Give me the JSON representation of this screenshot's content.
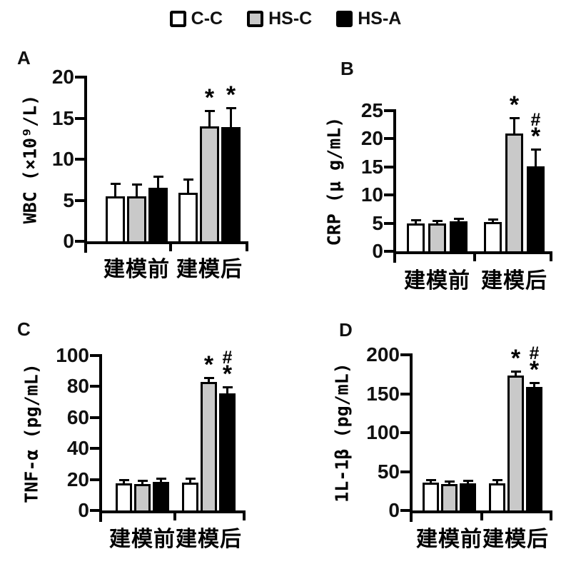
{
  "figure": {
    "background": "#ffffff",
    "panel_labels": [
      "A",
      "B",
      "C",
      "D"
    ]
  },
  "legend": {
    "position": "top-center",
    "items": [
      {
        "label": "C-C",
        "fill": "#ffffff",
        "border": "#000000"
      },
      {
        "label": "HS-C",
        "fill": "#c9c9c9",
        "border": "#000000"
      },
      {
        "label": "HS-A",
        "fill": "#000000",
        "border": "#000000"
      }
    ]
  },
  "chart_data": [
    {
      "panel": "A",
      "type": "bar",
      "ylabel": "WBC (×10⁹/L)",
      "xlabel": "",
      "ylim": [
        0,
        20
      ],
      "yticks": [
        0,
        5,
        10,
        15,
        20
      ],
      "grid": false,
      "legend_position": "top",
      "categories": [
        "建模前",
        "建模后"
      ],
      "series": [
        {
          "name": "C-C",
          "values": [
            5.5,
            5.9
          ],
          "errors": [
            1.4,
            1.5
          ],
          "annotations": [
            "",
            ""
          ]
        },
        {
          "name": "HS-C",
          "values": [
            5.5,
            14.0
          ],
          "errors": [
            1.3,
            1.7
          ],
          "annotations": [
            "",
            "*"
          ]
        },
        {
          "name": "HS-A",
          "values": [
            6.5,
            13.9
          ],
          "errors": [
            1.2,
            2.2
          ],
          "annotations": [
            "",
            "*"
          ]
        }
      ]
    },
    {
      "panel": "B",
      "type": "bar",
      "ylabel": "CRP (μ g/mL)",
      "xlabel": "",
      "ylim": [
        0,
        25
      ],
      "yticks": [
        0,
        5,
        10,
        15,
        20,
        25
      ],
      "grid": false,
      "legend_position": "top",
      "categories": [
        "建模前",
        "建模后"
      ],
      "series": [
        {
          "name": "C-C",
          "values": [
            4.9,
            5.2
          ],
          "errors": [
            0.4,
            0.3
          ],
          "annotations": [
            "",
            ""
          ]
        },
        {
          "name": "HS-C",
          "values": [
            5.0,
            21.0
          ],
          "errors": [
            0.3,
            2.5
          ],
          "annotations": [
            "",
            "*"
          ]
        },
        {
          "name": "HS-A",
          "values": [
            5.3,
            15.1
          ],
          "errors": [
            0.3,
            2.8
          ],
          "annotations": [
            "",
            "#*"
          ]
        }
      ]
    },
    {
      "panel": "C",
      "type": "bar",
      "ylabel": "TNF-α (pg/mL)",
      "xlabel": "",
      "ylim": [
        0,
        100
      ],
      "yticks": [
        0,
        20,
        40,
        60,
        80,
        100
      ],
      "grid": false,
      "legend_position": "top",
      "categories": [
        "建模前",
        "建模后"
      ],
      "series": [
        {
          "name": "C-C",
          "values": [
            17.5,
            18.0
          ],
          "errors": [
            1.5,
            2.0
          ],
          "annotations": [
            "",
            ""
          ]
        },
        {
          "name": "HS-C",
          "values": [
            17.0,
            83.0
          ],
          "errors": [
            1.5,
            2.0
          ],
          "annotations": [
            "",
            "*"
          ]
        },
        {
          "name": "HS-A",
          "values": [
            18.5,
            75.5
          ],
          "errors": [
            1.5,
            3.0
          ],
          "annotations": [
            "",
            "#*"
          ]
        }
      ]
    },
    {
      "panel": "D",
      "type": "bar",
      "ylabel": "1L-1β (pg/mL)",
      "xlabel": "",
      "ylim": [
        0,
        200
      ],
      "yticks": [
        0,
        50,
        100,
        150,
        200
      ],
      "grid": false,
      "legend_position": "top",
      "categories": [
        "建模前",
        "建模后"
      ],
      "series": [
        {
          "name": "C-C",
          "values": [
            36,
            35
          ],
          "errors": [
            2,
            2.5
          ],
          "annotations": [
            "",
            ""
          ]
        },
        {
          "name": "HS-C",
          "values": [
            34,
            173
          ],
          "errors": [
            2,
            4
          ],
          "annotations": [
            "",
            "*"
          ]
        },
        {
          "name": "HS-A",
          "values": [
            35,
            159
          ],
          "errors": [
            2,
            4
          ],
          "annotations": [
            "",
            "#*"
          ]
        }
      ]
    }
  ]
}
